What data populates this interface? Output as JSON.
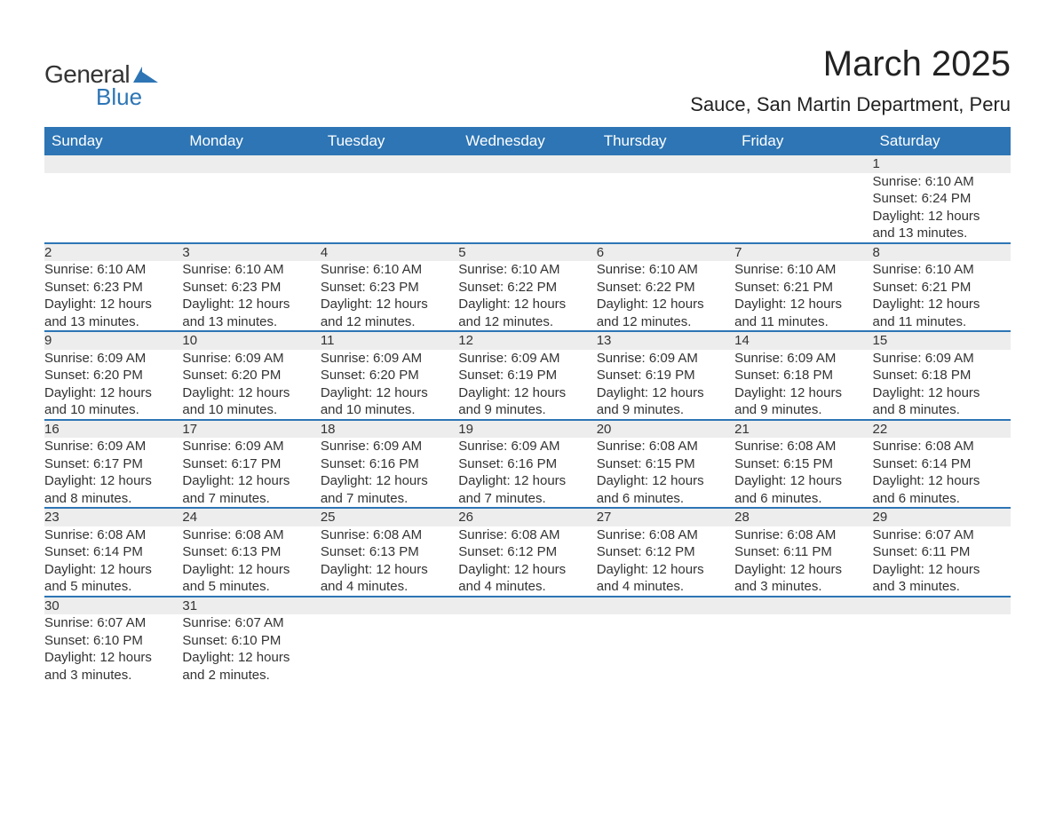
{
  "logo": {
    "line1": "General",
    "line2": "Blue",
    "accent_color": "#2d75b5"
  },
  "title": "March 2025",
  "location": "Sauce, San Martin Department, Peru",
  "colors": {
    "header_bg": "#2d75b5",
    "header_text": "#ffffff",
    "daynum_bg": "#ededed",
    "row_divider": "#2d75b5",
    "body_text": "#333333",
    "page_bg": "#ffffff"
  },
  "fonts": {
    "base_family": "Arial",
    "title_pt": 40,
    "location_pt": 22,
    "header_pt": 17,
    "cell_pt": 15
  },
  "weekdays": [
    "Sunday",
    "Monday",
    "Tuesday",
    "Wednesday",
    "Thursday",
    "Friday",
    "Saturday"
  ],
  "weeks": [
    [
      null,
      null,
      null,
      null,
      null,
      null,
      {
        "day": 1,
        "sunrise": "Sunrise: 6:10 AM",
        "sunset": "Sunset: 6:24 PM",
        "daylight1": "Daylight: 12 hours",
        "daylight2": "and 13 minutes."
      }
    ],
    [
      {
        "day": 2,
        "sunrise": "Sunrise: 6:10 AM",
        "sunset": "Sunset: 6:23 PM",
        "daylight1": "Daylight: 12 hours",
        "daylight2": "and 13 minutes."
      },
      {
        "day": 3,
        "sunrise": "Sunrise: 6:10 AM",
        "sunset": "Sunset: 6:23 PM",
        "daylight1": "Daylight: 12 hours",
        "daylight2": "and 13 minutes."
      },
      {
        "day": 4,
        "sunrise": "Sunrise: 6:10 AM",
        "sunset": "Sunset: 6:23 PM",
        "daylight1": "Daylight: 12 hours",
        "daylight2": "and 12 minutes."
      },
      {
        "day": 5,
        "sunrise": "Sunrise: 6:10 AM",
        "sunset": "Sunset: 6:22 PM",
        "daylight1": "Daylight: 12 hours",
        "daylight2": "and 12 minutes."
      },
      {
        "day": 6,
        "sunrise": "Sunrise: 6:10 AM",
        "sunset": "Sunset: 6:22 PM",
        "daylight1": "Daylight: 12 hours",
        "daylight2": "and 12 minutes."
      },
      {
        "day": 7,
        "sunrise": "Sunrise: 6:10 AM",
        "sunset": "Sunset: 6:21 PM",
        "daylight1": "Daylight: 12 hours",
        "daylight2": "and 11 minutes."
      },
      {
        "day": 8,
        "sunrise": "Sunrise: 6:10 AM",
        "sunset": "Sunset: 6:21 PM",
        "daylight1": "Daylight: 12 hours",
        "daylight2": "and 11 minutes."
      }
    ],
    [
      {
        "day": 9,
        "sunrise": "Sunrise: 6:09 AM",
        "sunset": "Sunset: 6:20 PM",
        "daylight1": "Daylight: 12 hours",
        "daylight2": "and 10 minutes."
      },
      {
        "day": 10,
        "sunrise": "Sunrise: 6:09 AM",
        "sunset": "Sunset: 6:20 PM",
        "daylight1": "Daylight: 12 hours",
        "daylight2": "and 10 minutes."
      },
      {
        "day": 11,
        "sunrise": "Sunrise: 6:09 AM",
        "sunset": "Sunset: 6:20 PM",
        "daylight1": "Daylight: 12 hours",
        "daylight2": "and 10 minutes."
      },
      {
        "day": 12,
        "sunrise": "Sunrise: 6:09 AM",
        "sunset": "Sunset: 6:19 PM",
        "daylight1": "Daylight: 12 hours",
        "daylight2": "and 9 minutes."
      },
      {
        "day": 13,
        "sunrise": "Sunrise: 6:09 AM",
        "sunset": "Sunset: 6:19 PM",
        "daylight1": "Daylight: 12 hours",
        "daylight2": "and 9 minutes."
      },
      {
        "day": 14,
        "sunrise": "Sunrise: 6:09 AM",
        "sunset": "Sunset: 6:18 PM",
        "daylight1": "Daylight: 12 hours",
        "daylight2": "and 9 minutes."
      },
      {
        "day": 15,
        "sunrise": "Sunrise: 6:09 AM",
        "sunset": "Sunset: 6:18 PM",
        "daylight1": "Daylight: 12 hours",
        "daylight2": "and 8 minutes."
      }
    ],
    [
      {
        "day": 16,
        "sunrise": "Sunrise: 6:09 AM",
        "sunset": "Sunset: 6:17 PM",
        "daylight1": "Daylight: 12 hours",
        "daylight2": "and 8 minutes."
      },
      {
        "day": 17,
        "sunrise": "Sunrise: 6:09 AM",
        "sunset": "Sunset: 6:17 PM",
        "daylight1": "Daylight: 12 hours",
        "daylight2": "and 7 minutes."
      },
      {
        "day": 18,
        "sunrise": "Sunrise: 6:09 AM",
        "sunset": "Sunset: 6:16 PM",
        "daylight1": "Daylight: 12 hours",
        "daylight2": "and 7 minutes."
      },
      {
        "day": 19,
        "sunrise": "Sunrise: 6:09 AM",
        "sunset": "Sunset: 6:16 PM",
        "daylight1": "Daylight: 12 hours",
        "daylight2": "and 7 minutes."
      },
      {
        "day": 20,
        "sunrise": "Sunrise: 6:08 AM",
        "sunset": "Sunset: 6:15 PM",
        "daylight1": "Daylight: 12 hours",
        "daylight2": "and 6 minutes."
      },
      {
        "day": 21,
        "sunrise": "Sunrise: 6:08 AM",
        "sunset": "Sunset: 6:15 PM",
        "daylight1": "Daylight: 12 hours",
        "daylight2": "and 6 minutes."
      },
      {
        "day": 22,
        "sunrise": "Sunrise: 6:08 AM",
        "sunset": "Sunset: 6:14 PM",
        "daylight1": "Daylight: 12 hours",
        "daylight2": "and 6 minutes."
      }
    ],
    [
      {
        "day": 23,
        "sunrise": "Sunrise: 6:08 AM",
        "sunset": "Sunset: 6:14 PM",
        "daylight1": "Daylight: 12 hours",
        "daylight2": "and 5 minutes."
      },
      {
        "day": 24,
        "sunrise": "Sunrise: 6:08 AM",
        "sunset": "Sunset: 6:13 PM",
        "daylight1": "Daylight: 12 hours",
        "daylight2": "and 5 minutes."
      },
      {
        "day": 25,
        "sunrise": "Sunrise: 6:08 AM",
        "sunset": "Sunset: 6:13 PM",
        "daylight1": "Daylight: 12 hours",
        "daylight2": "and 4 minutes."
      },
      {
        "day": 26,
        "sunrise": "Sunrise: 6:08 AM",
        "sunset": "Sunset: 6:12 PM",
        "daylight1": "Daylight: 12 hours",
        "daylight2": "and 4 minutes."
      },
      {
        "day": 27,
        "sunrise": "Sunrise: 6:08 AM",
        "sunset": "Sunset: 6:12 PM",
        "daylight1": "Daylight: 12 hours",
        "daylight2": "and 4 minutes."
      },
      {
        "day": 28,
        "sunrise": "Sunrise: 6:08 AM",
        "sunset": "Sunset: 6:11 PM",
        "daylight1": "Daylight: 12 hours",
        "daylight2": "and 3 minutes."
      },
      {
        "day": 29,
        "sunrise": "Sunrise: 6:07 AM",
        "sunset": "Sunset: 6:11 PM",
        "daylight1": "Daylight: 12 hours",
        "daylight2": "and 3 minutes."
      }
    ],
    [
      {
        "day": 30,
        "sunrise": "Sunrise: 6:07 AM",
        "sunset": "Sunset: 6:10 PM",
        "daylight1": "Daylight: 12 hours",
        "daylight2": "and 3 minutes."
      },
      {
        "day": 31,
        "sunrise": "Sunrise: 6:07 AM",
        "sunset": "Sunset: 6:10 PM",
        "daylight1": "Daylight: 12 hours",
        "daylight2": "and 2 minutes."
      },
      null,
      null,
      null,
      null,
      null
    ]
  ]
}
